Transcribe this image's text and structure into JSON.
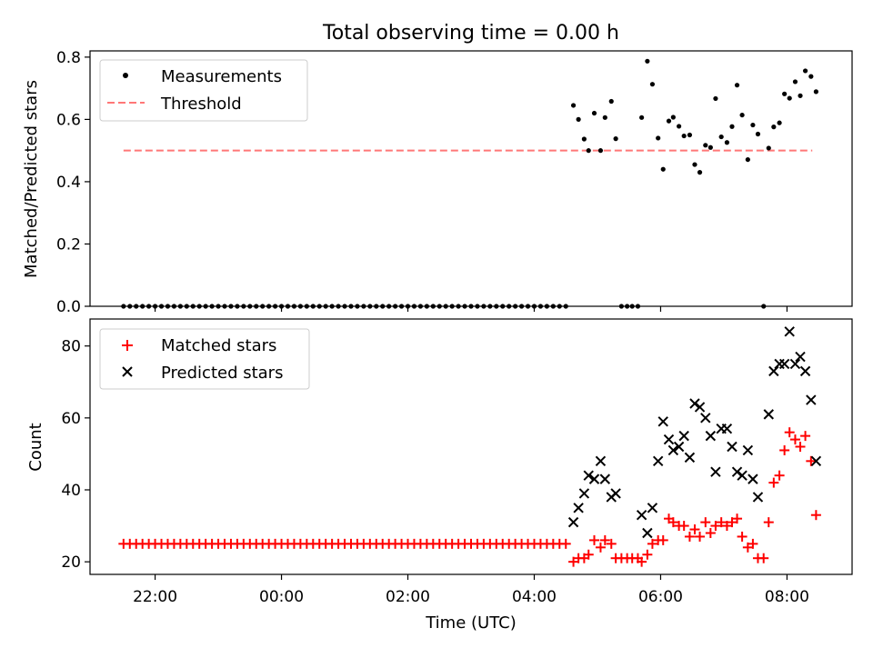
{
  "figure": {
    "title": "Total observing time = 0.00 h",
    "xlabel": "Time (UTC)",
    "x_ticks": [
      {
        "t": 22,
        "label": "22:00"
      },
      {
        "t": 24,
        "label": "00:00"
      },
      {
        "t": 26,
        "label": "02:00"
      },
      {
        "t": 28,
        "label": "04:00"
      },
      {
        "t": 30,
        "label": "06:00"
      },
      {
        "t": 32,
        "label": "08:00"
      }
    ]
  },
  "chart_data": [
    {
      "type": "scatter",
      "panel": "top",
      "ylabel": "Matched/Predicted stars",
      "xlim": [
        20.97,
        33.03
      ],
      "ylim": [
        0,
        0.82
      ],
      "y_ticks": [
        {
          "v": 0.0,
          "label": "0.0"
        },
        {
          "v": 0.2,
          "label": "0.2"
        },
        {
          "v": 0.4,
          "label": "0.4"
        },
        {
          "v": 0.6,
          "label": "0.6"
        },
        {
          "v": 0.8,
          "label": "0.8"
        }
      ],
      "legend": {
        "position": "top-left",
        "entries": [
          "Measurements",
          "Threshold"
        ]
      },
      "threshold": {
        "name": "Threshold",
        "value": 0.5,
        "x_range": [
          21.5,
          32.4
        ],
        "color": "#ff7777"
      },
      "series": [
        {
          "name": "Measurements",
          "color": "#000000",
          "zero_points": {
            "start": 21.5,
            "end": 28.55,
            "step": 0.1
          },
          "points": [
            [
              28.62,
              0.645
            ],
            [
              28.7,
              0.6
            ],
            [
              28.79,
              0.537
            ],
            [
              28.86,
              0.5
            ],
            [
              28.95,
              0.62
            ],
            [
              29.05,
              0.5
            ],
            [
              29.12,
              0.606
            ],
            [
              29.22,
              0.658
            ],
            [
              29.29,
              0.538
            ],
            [
              29.38,
              0.0
            ],
            [
              29.47,
              0.0
            ],
            [
              29.55,
              0.0
            ],
            [
              29.64,
              0.0
            ],
            [
              29.7,
              0.606
            ],
            [
              29.79,
              0.787
            ],
            [
              29.87,
              0.713
            ],
            [
              29.96,
              0.54
            ],
            [
              30.04,
              0.44
            ],
            [
              30.13,
              0.595
            ],
            [
              30.2,
              0.607
            ],
            [
              30.29,
              0.578
            ],
            [
              30.37,
              0.547
            ],
            [
              30.46,
              0.55
            ],
            [
              30.54,
              0.455
            ],
            [
              30.62,
              0.43
            ],
            [
              30.71,
              0.517
            ],
            [
              30.79,
              0.51
            ],
            [
              30.87,
              0.667
            ],
            [
              30.96,
              0.544
            ],
            [
              31.05,
              0.526
            ],
            [
              31.13,
              0.577
            ],
            [
              31.21,
              0.71
            ],
            [
              31.29,
              0.614
            ],
            [
              31.38,
              0.471
            ],
            [
              31.46,
              0.582
            ],
            [
              31.54,
              0.553
            ],
            [
              31.63,
              0.0
            ],
            [
              31.71,
              0.508
            ],
            [
              31.79,
              0.576
            ],
            [
              31.88,
              0.589
            ],
            [
              31.96,
              0.682
            ],
            [
              32.04,
              0.668
            ],
            [
              32.13,
              0.721
            ],
            [
              32.21,
              0.676
            ],
            [
              32.29,
              0.756
            ],
            [
              32.38,
              0.738
            ],
            [
              32.46,
              0.689
            ]
          ]
        }
      ]
    },
    {
      "type": "scatter",
      "panel": "bottom",
      "ylabel": "Count",
      "xlim": [
        20.97,
        33.03
      ],
      "ylim": [
        16.5,
        87.5
      ],
      "y_ticks": [
        {
          "v": 20,
          "label": "20"
        },
        {
          "v": 40,
          "label": "40"
        },
        {
          "v": 60,
          "label": "60"
        },
        {
          "v": 80,
          "label": "80"
        }
      ],
      "legend": {
        "position": "top-left",
        "entries": [
          "Matched stars",
          "Predicted stars"
        ]
      },
      "series": [
        {
          "name": "Matched stars",
          "marker": "plus",
          "color": "#ff0000",
          "constant_run": {
            "start": 21.5,
            "end": 28.55,
            "step": 0.1,
            "value": 25
          },
          "points": [
            [
              28.62,
              20
            ],
            [
              28.7,
              21
            ],
            [
              28.79,
              21
            ],
            [
              28.86,
              22
            ],
            [
              28.95,
              26
            ],
            [
              29.05,
              24
            ],
            [
              29.12,
              26
            ],
            [
              29.22,
              25
            ],
            [
              29.29,
              21
            ],
            [
              29.38,
              21
            ],
            [
              29.47,
              21
            ],
            [
              29.55,
              21
            ],
            [
              29.64,
              21
            ],
            [
              29.7,
              20
            ],
            [
              29.79,
              22
            ],
            [
              29.87,
              25
            ],
            [
              29.96,
              26
            ],
            [
              30.04,
              26
            ],
            [
              30.13,
              32
            ],
            [
              30.2,
              31
            ],
            [
              30.29,
              30
            ],
            [
              30.37,
              30
            ],
            [
              30.46,
              27
            ],
            [
              30.54,
              29
            ],
            [
              30.62,
              27
            ],
            [
              30.71,
              31
            ],
            [
              30.79,
              28
            ],
            [
              30.87,
              30
            ],
            [
              30.96,
              31
            ],
            [
              31.05,
              30
            ],
            [
              31.13,
              31
            ],
            [
              31.21,
              32
            ],
            [
              31.29,
              27
            ],
            [
              31.38,
              24
            ],
            [
              31.46,
              25
            ],
            [
              31.54,
              21
            ],
            [
              31.63,
              21
            ],
            [
              31.71,
              31
            ],
            [
              31.79,
              42
            ],
            [
              31.88,
              44
            ],
            [
              31.96,
              51
            ],
            [
              32.04,
              56
            ],
            [
              32.13,
              54
            ],
            [
              32.21,
              52
            ],
            [
              32.29,
              55
            ],
            [
              32.38,
              48
            ],
            [
              32.46,
              33
            ]
          ]
        },
        {
          "name": "Predicted stars",
          "marker": "x",
          "color": "#000000",
          "points": [
            [
              28.62,
              31
            ],
            [
              28.7,
              35
            ],
            [
              28.79,
              39
            ],
            [
              28.86,
              44
            ],
            [
              28.95,
              43
            ],
            [
              29.05,
              48
            ],
            [
              29.12,
              43
            ],
            [
              29.22,
              38
            ],
            [
              29.29,
              39
            ],
            [
              29.7,
              33
            ],
            [
              29.79,
              28
            ],
            [
              29.87,
              35
            ],
            [
              29.96,
              48
            ],
            [
              30.04,
              59
            ],
            [
              30.13,
              54
            ],
            [
              30.2,
              51
            ],
            [
              30.29,
              52
            ],
            [
              30.37,
              55
            ],
            [
              30.46,
              49
            ],
            [
              30.54,
              64
            ],
            [
              30.62,
              63
            ],
            [
              30.71,
              60
            ],
            [
              30.79,
              55
            ],
            [
              30.87,
              45
            ],
            [
              30.96,
              57
            ],
            [
              31.05,
              57
            ],
            [
              31.13,
              52
            ],
            [
              31.21,
              45
            ],
            [
              31.29,
              44
            ],
            [
              31.38,
              51
            ],
            [
              31.46,
              43
            ],
            [
              31.54,
              38
            ],
            [
              31.71,
              61
            ],
            [
              31.79,
              73
            ],
            [
              31.88,
              75
            ],
            [
              31.96,
              75
            ],
            [
              32.04,
              84
            ],
            [
              32.13,
              75
            ],
            [
              32.21,
              77
            ],
            [
              32.29,
              73
            ],
            [
              32.38,
              65
            ],
            [
              32.46,
              48
            ]
          ]
        }
      ]
    }
  ]
}
